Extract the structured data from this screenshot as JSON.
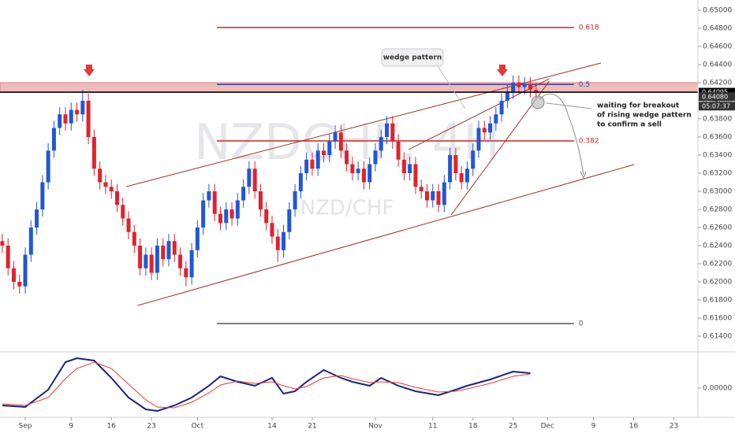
{
  "chart_data": {
    "type": "candlestick",
    "watermark": {
      "symbol": "NZDCHF, 4H",
      "pair": "NZD/CHF"
    },
    "xlim": [
      -3.4,
      118.2
    ],
    "ylim": [
      0.613,
      0.651
    ],
    "yticks": [
      {
        "value": 0.614,
        "label": "0.61400"
      },
      {
        "value": 0.616,
        "label": "0.61600"
      },
      {
        "value": 0.618,
        "label": "0.61800"
      },
      {
        "value": 0.62,
        "label": "0.62000"
      },
      {
        "value": 0.622,
        "label": "0.62200"
      },
      {
        "value": 0.624,
        "label": "0.62400"
      },
      {
        "value": 0.626,
        "label": "0.62600"
      },
      {
        "value": 0.628,
        "label": "0.62800"
      },
      {
        "value": 0.63,
        "label": "0.63000"
      },
      {
        "value": 0.632,
        "label": "0.63200"
      },
      {
        "value": 0.634,
        "label": "0.63400"
      },
      {
        "value": 0.636,
        "label": "0.63600"
      },
      {
        "value": 0.638,
        "label": "0.63800"
      },
      {
        "value": 0.64,
        "label": "0.64000"
      },
      {
        "value": 0.642,
        "label": "0.64200"
      },
      {
        "value": 0.644,
        "label": "0.64400"
      },
      {
        "value": 0.646,
        "label": "0.64600"
      },
      {
        "value": 0.648,
        "label": "0.64800"
      },
      {
        "value": 0.65,
        "label": "0.65000"
      }
    ],
    "xticks": [
      {
        "value": 1,
        "label": "Sep"
      },
      {
        "value": 9,
        "label": "9"
      },
      {
        "value": 16,
        "label": "16"
      },
      {
        "value": 23,
        "label": "23"
      },
      {
        "value": 31,
        "label": "Oct"
      },
      {
        "value": 44,
        "label": "14"
      },
      {
        "value": 51,
        "label": "21"
      },
      {
        "value": 62,
        "label": "Nov"
      },
      {
        "value": 72,
        "label": "11"
      },
      {
        "value": 79,
        "label": "18"
      },
      {
        "value": 86,
        "label": "25"
      },
      {
        "value": 92,
        "label": "Dec"
      },
      {
        "value": 100,
        "label": "9"
      },
      {
        "value": 107,
        "label": "16"
      },
      {
        "value": 114,
        "label": "23"
      }
    ],
    "up_color": "#2157d6",
    "down_color": "#e0222d",
    "x": [
      -3,
      -2,
      -1,
      0,
      1,
      2,
      3,
      4,
      5,
      6,
      7,
      8,
      9,
      10,
      11,
      12,
      13,
      14,
      15,
      16,
      17,
      18,
      19,
      20,
      21,
      22,
      23,
      24,
      25,
      26,
      27,
      28,
      29,
      30,
      31,
      32,
      33,
      34,
      35,
      36,
      37,
      38,
      39,
      40,
      41,
      42,
      43,
      44,
      45,
      46,
      47,
      48,
      49,
      50,
      51,
      52,
      53,
      54,
      55,
      56,
      57,
      58,
      59,
      60,
      61,
      62,
      63,
      64,
      65,
      66,
      67,
      68,
      69,
      70,
      71,
      72,
      73,
      74,
      75,
      76,
      77,
      78,
      79,
      80,
      81,
      82,
      83,
      84,
      85,
      86,
      87,
      88,
      89,
      90
    ],
    "ohlc": [
      [
        0.6245,
        0.6253,
        0.6232,
        0.624
      ],
      [
        0.624,
        0.6248,
        0.6207,
        0.6215
      ],
      [
        0.6215,
        0.6223,
        0.6192,
        0.62
      ],
      [
        0.62,
        0.6208,
        0.6187,
        0.6195
      ],
      [
        0.6195,
        0.6238,
        0.6187,
        0.623
      ],
      [
        0.623,
        0.6268,
        0.6222,
        0.626
      ],
      [
        0.626,
        0.6288,
        0.6252,
        0.628
      ],
      [
        0.628,
        0.6318,
        0.6272,
        0.631
      ],
      [
        0.631,
        0.6353,
        0.6302,
        0.6345
      ],
      [
        0.6345,
        0.6378,
        0.6337,
        0.637
      ],
      [
        0.637,
        0.6393,
        0.6362,
        0.6385
      ],
      [
        0.6385,
        0.6393,
        0.6367,
        0.6375
      ],
      [
        0.6375,
        0.6398,
        0.6367,
        0.639
      ],
      [
        0.639,
        0.6398,
        0.6377,
        0.6385
      ],
      [
        0.6385,
        0.6412,
        0.6377,
        0.64
      ],
      [
        0.64,
        0.6408,
        0.6352,
        0.636
      ],
      [
        0.636,
        0.6368,
        0.6317,
        0.6325
      ],
      [
        0.6325,
        0.6333,
        0.6302,
        0.631
      ],
      [
        0.631,
        0.6318,
        0.6297,
        0.6305
      ],
      [
        0.6305,
        0.6313,
        0.6292,
        0.63
      ],
      [
        0.63,
        0.6308,
        0.6277,
        0.6285
      ],
      [
        0.6285,
        0.6293,
        0.6262,
        0.627
      ],
      [
        0.627,
        0.6278,
        0.6247,
        0.6255
      ],
      [
        0.6255,
        0.6263,
        0.6232,
        0.624
      ],
      [
        0.624,
        0.6248,
        0.6207,
        0.6215
      ],
      [
        0.6215,
        0.6238,
        0.6207,
        0.623
      ],
      [
        0.623,
        0.6238,
        0.6202,
        0.621
      ],
      [
        0.621,
        0.6248,
        0.6202,
        0.624
      ],
      [
        0.624,
        0.6248,
        0.6217,
        0.6225
      ],
      [
        0.6225,
        0.6253,
        0.6217,
        0.6245
      ],
      [
        0.6245,
        0.6253,
        0.6222,
        0.623
      ],
      [
        0.623,
        0.6238,
        0.6207,
        0.6215
      ],
      [
        0.6215,
        0.6223,
        0.6195,
        0.6205
      ],
      [
        0.6205,
        0.6243,
        0.6197,
        0.6235
      ],
      [
        0.6235,
        0.6268,
        0.6227,
        0.626
      ],
      [
        0.626,
        0.6298,
        0.6252,
        0.629
      ],
      [
        0.629,
        0.6308,
        0.6282,
        0.63
      ],
      [
        0.63,
        0.6308,
        0.6267,
        0.6275
      ],
      [
        0.6275,
        0.6283,
        0.6257,
        0.6265
      ],
      [
        0.6265,
        0.6288,
        0.6257,
        0.628
      ],
      [
        0.628,
        0.6288,
        0.6262,
        0.627
      ],
      [
        0.627,
        0.6298,
        0.6262,
        0.629
      ],
      [
        0.629,
        0.6313,
        0.6282,
        0.6305
      ],
      [
        0.6305,
        0.6333,
        0.6297,
        0.6325
      ],
      [
        0.6325,
        0.6333,
        0.6292,
        0.63
      ],
      [
        0.63,
        0.6308,
        0.6272,
        0.628
      ],
      [
        0.628,
        0.6288,
        0.6257,
        0.6265
      ],
      [
        0.6265,
        0.6273,
        0.6242,
        0.625
      ],
      [
        0.625,
        0.6258,
        0.6222,
        0.6235
      ],
      [
        0.6235,
        0.6263,
        0.6227,
        0.6255
      ],
      [
        0.6255,
        0.6288,
        0.6247,
        0.628
      ],
      [
        0.628,
        0.6308,
        0.6272,
        0.63
      ],
      [
        0.63,
        0.6328,
        0.6292,
        0.632
      ],
      [
        0.632,
        0.6343,
        0.6312,
        0.6335
      ],
      [
        0.6335,
        0.6343,
        0.6317,
        0.6325
      ],
      [
        0.6325,
        0.6353,
        0.6317,
        0.6345
      ],
      [
        0.6345,
        0.6353,
        0.6332,
        0.634
      ],
      [
        0.634,
        0.6363,
        0.6332,
        0.6355
      ],
      [
        0.6355,
        0.6373,
        0.6347,
        0.6365
      ],
      [
        0.6365,
        0.6373,
        0.6337,
        0.6345
      ],
      [
        0.6345,
        0.6353,
        0.6322,
        0.633
      ],
      [
        0.633,
        0.6338,
        0.6312,
        0.632
      ],
      [
        0.632,
        0.6333,
        0.6312,
        0.6325
      ],
      [
        0.6325,
        0.6333,
        0.6302,
        0.631
      ],
      [
        0.631,
        0.6338,
        0.6302,
        0.633
      ],
      [
        0.633,
        0.6353,
        0.6322,
        0.6345
      ],
      [
        0.6345,
        0.6368,
        0.6337,
        0.636
      ],
      [
        0.636,
        0.6383,
        0.6352,
        0.6375
      ],
      [
        0.6375,
        0.6383,
        0.6347,
        0.6355
      ],
      [
        0.6355,
        0.6363,
        0.6327,
        0.6335
      ],
      [
        0.6335,
        0.6343,
        0.6312,
        0.632
      ],
      [
        0.632,
        0.6338,
        0.6312,
        0.633
      ],
      [
        0.633,
        0.6338,
        0.6297,
        0.6305
      ],
      [
        0.6305,
        0.6313,
        0.6292,
        0.63
      ],
      [
        0.63,
        0.6308,
        0.6282,
        0.629
      ],
      [
        0.629,
        0.6308,
        0.6282,
        0.63
      ],
      [
        0.63,
        0.6308,
        0.6277,
        0.6285
      ],
      [
        0.6285,
        0.6318,
        0.6277,
        0.631
      ],
      [
        0.631,
        0.6348,
        0.6302,
        0.634
      ],
      [
        0.634,
        0.6348,
        0.6312,
        0.632
      ],
      [
        0.632,
        0.6328,
        0.6302,
        0.631
      ],
      [
        0.631,
        0.6333,
        0.6302,
        0.6325
      ],
      [
        0.6325,
        0.6353,
        0.6317,
        0.6345
      ],
      [
        0.6345,
        0.6378,
        0.6337,
        0.637
      ],
      [
        0.637,
        0.6378,
        0.6357,
        0.6365
      ],
      [
        0.6365,
        0.6383,
        0.6357,
        0.6375
      ],
      [
        0.6375,
        0.6393,
        0.6367,
        0.6385
      ],
      [
        0.6385,
        0.6408,
        0.6377,
        0.64
      ],
      [
        0.64,
        0.6418,
        0.6392,
        0.641
      ],
      [
        0.641,
        0.6428,
        0.6402,
        0.642
      ],
      [
        0.642,
        0.6428,
        0.6407,
        0.6415
      ],
      [
        0.6415,
        0.6426,
        0.6407,
        0.6418
      ],
      [
        0.6418,
        0.6426,
        0.6404,
        0.6412
      ],
      [
        0.6412,
        0.642,
        0.6401,
        0.6409
      ]
    ],
    "price_tags": [
      {
        "value": 0.64095,
        "label": "0.64095"
      },
      {
        "value": 0.6408,
        "label": "0.64080"
      }
    ],
    "countdown": "05:07:37",
    "zone": [
      0.641,
      0.642
    ],
    "fib": {
      "x": [
        34.4,
        96.6
      ],
      "levels": [
        {
          "ratio": 0.618,
          "price": 0.6481,
          "color": "#c62828"
        },
        {
          "ratio": 0.5,
          "price": 0.6418,
          "color": "#3a3f9a"
        },
        {
          "ratio": 0.382,
          "price": 0.63557,
          "color": "#c62828"
        },
        {
          "ratio": 0,
          "price": 0.61539,
          "color": "#555555"
        }
      ]
    },
    "trendlines": [
      {
        "x": [
          20.6,
          107.1
        ],
        "price": [
          0.61739,
          0.63296
        ]
      },
      {
        "x": [
          18.6,
          101.3
        ],
        "price": [
          0.63052,
          0.64417
        ]
      },
      {
        "x": [
          75.2,
          92.3
        ],
        "price": [
          0.62739,
          0.64217
        ]
      },
      {
        "x": [
          67.8,
          92.3
        ],
        "price": [
          0.63461,
          0.64243
        ]
      }
    ],
    "annotations": [
      "wedge pattern",
      "waiting for breakout",
      "of rising wedge pattern",
      "to confirm a sell"
    ],
    "oscillator": {
      "ylim": [
        -0.0037,
        0.0043
      ],
      "yticks": [
        {
          "value": 0,
          "label": "0.00000"
        }
      ],
      "x": [
        -3,
        1,
        5,
        8,
        10,
        13,
        16,
        19,
        22,
        24,
        27,
        30,
        33,
        35,
        38,
        41,
        44,
        46,
        48,
        50,
        53,
        56,
        58,
        61,
        63,
        66,
        69,
        73,
        76,
        78,
        82,
        86,
        89
      ],
      "series": [
        {
          "color": "#1a237e",
          "values": [
            -0.0022,
            -0.0024,
            -0.0002,
            0.0033,
            0.0038,
            0.0035,
            0.0013,
            -0.0012,
            -0.0027,
            -0.0029,
            -0.0022,
            -0.0012,
            0.0003,
            0.0015,
            0.0008,
            0.0003,
            0.0013,
            -0.0007,
            -0.0004,
            0.0008,
            0.0023,
            0.0013,
            0.0008,
            0.0003,
            0.0013,
            0.0003,
            -0.0004,
            -0.0009,
            -0.0002,
            0.0003,
            0.0011,
            0.0021,
            0.0019
          ]
        },
        {
          "color": "#e53935",
          "values": [
            -0.002,
            -0.0022,
            -0.0012,
            0.0012,
            0.0025,
            0.0033,
            0.0025,
            0.0005,
            -0.0015,
            -0.0024,
            -0.0025,
            -0.0018,
            -0.0006,
            0.0004,
            0.0009,
            0.0006,
            0.0008,
            0.0003,
            -0.0001,
            0.0002,
            0.0013,
            0.0016,
            0.0012,
            0.0007,
            0.0008,
            0.0007,
            0.0001,
            -0.0005,
            -0.0004,
            -0.0001,
            0.0006,
            0.0015,
            0.0018
          ]
        }
      ]
    }
  }
}
